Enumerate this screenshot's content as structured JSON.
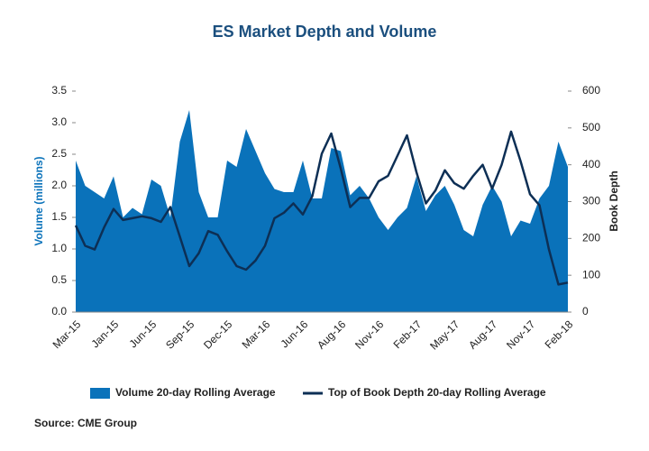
{
  "chart_data": {
    "type": "area-line",
    "title": "ES Market Depth and Volume",
    "y_label": "Volume (millions)",
    "y2_label": "Book Depth",
    "source": "Source: CME Group",
    "categories": [
      "Mar-15",
      null,
      null,
      null,
      "Jan-15",
      null,
      null,
      null,
      "Jun-15",
      null,
      null,
      null,
      "Sep-15",
      null,
      null,
      null,
      "Dec-15",
      null,
      null,
      null,
      "Mar-16",
      null,
      null,
      null,
      "Jun-16",
      null,
      null,
      null,
      "Aug-16",
      null,
      null,
      null,
      "Nov-16",
      null,
      null,
      null,
      "Feb-17",
      null,
      null,
      null,
      "May-17",
      null,
      null,
      null,
      "Aug-17",
      null,
      null,
      null,
      "Nov-17",
      null,
      null,
      null,
      "Feb-18"
    ],
    "series": [
      {
        "name": "Volume 20-day Rolling Average",
        "type": "area",
        "color": "#0a72ba",
        "values": [
          2.4,
          2.0,
          1.9,
          1.8,
          2.15,
          1.5,
          1.65,
          1.55,
          2.1,
          2.0,
          1.5,
          2.7,
          3.2,
          1.9,
          1.5,
          1.5,
          2.4,
          2.3,
          2.9,
          2.55,
          2.2,
          1.95,
          1.9,
          1.9,
          2.4,
          1.8,
          1.8,
          2.6,
          2.55,
          1.85,
          2.0,
          1.8,
          1.5,
          1.3,
          1.5,
          1.65,
          2.15,
          1.6,
          1.85,
          2.0,
          1.7,
          1.3,
          1.2,
          1.7,
          2.0,
          1.75,
          1.2,
          1.45,
          1.4,
          1.8,
          2.0,
          2.7,
          2.3
        ]
      },
      {
        "name": "Top of Book Depth 20-day Rolling Average",
        "type": "line",
        "axis": "y2",
        "color": "#0d2f55",
        "values": [
          235,
          180,
          170,
          230,
          280,
          250,
          255,
          260,
          255,
          245,
          285,
          205,
          125,
          160,
          220,
          210,
          165,
          125,
          115,
          140,
          180,
          255,
          270,
          295,
          265,
          315,
          430,
          485,
          390,
          285,
          310,
          310,
          355,
          370,
          425,
          480,
          380,
          295,
          330,
          385,
          350,
          335,
          370,
          400,
          335,
          400,
          490,
          410,
          320,
          290,
          170,
          75,
          80
        ]
      }
    ],
    "ylim": [
      0,
      3.5
    ],
    "yticks": [
      {
        "value": 0,
        "label": "0.0"
      },
      0.5,
      {
        "value": 1,
        "label": "1.0"
      },
      1.5,
      {
        "value": 2,
        "label": "2.0"
      },
      2.5,
      {
        "value": 3,
        "label": "3.0"
      },
      3.5
    ],
    "y2lim": [
      0,
      600
    ],
    "y2ticks": [
      0,
      100,
      200,
      300,
      400,
      500,
      600
    ]
  }
}
